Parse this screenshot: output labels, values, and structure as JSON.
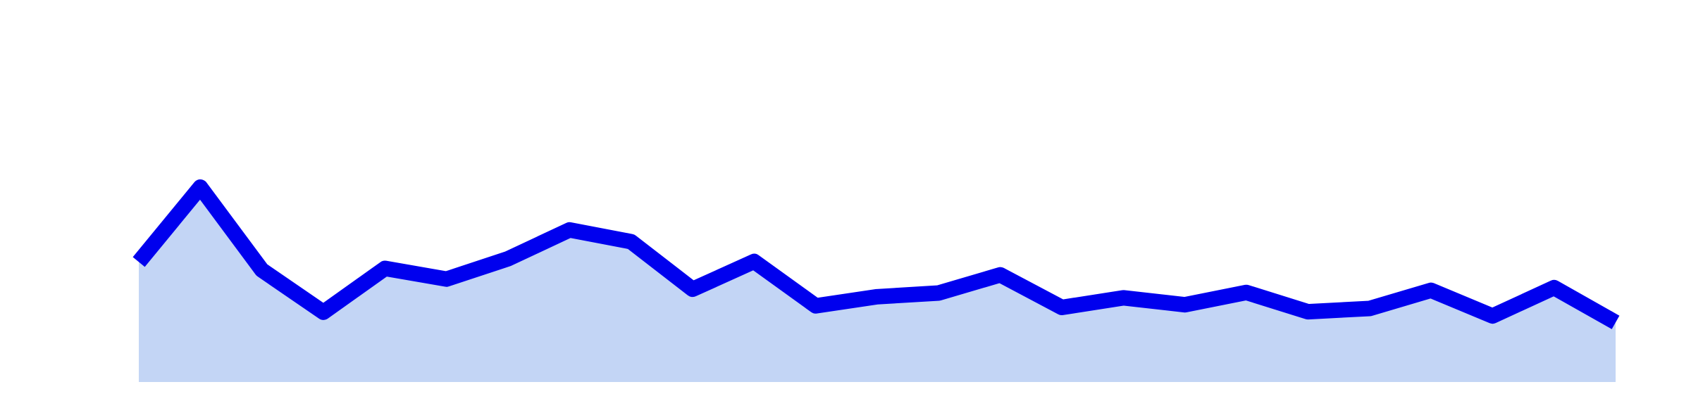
{
  "chart_data": {
    "type": "area",
    "title": "",
    "xlabel": "",
    "ylabel": "",
    "x": [
      1,
      2,
      3,
      4,
      5,
      6,
      7,
      8,
      9,
      10,
      11,
      12,
      13,
      14,
      15,
      16,
      17,
      18,
      19,
      20,
      21,
      22,
      23,
      24,
      25
    ],
    "series": [
      {
        "name": "",
        "values": [
          16.0,
          30.0,
          14.5,
          6.6,
          14.8,
          12.8,
          16.6,
          22.0,
          19.8,
          10.9,
          16.1,
          7.8,
          9.5,
          10.2,
          13.6,
          7.5,
          9.3,
          8.0,
          10.3,
          6.7,
          7.3,
          10.7,
          5.9,
          11.2,
          4.7
        ],
        "line_color": "#0000ee",
        "fill_color": "#c3d5f5"
      }
    ],
    "ylim": [
      -10,
      65
    ],
    "grid": false,
    "axes_visible": false,
    "legend": "none"
  }
}
